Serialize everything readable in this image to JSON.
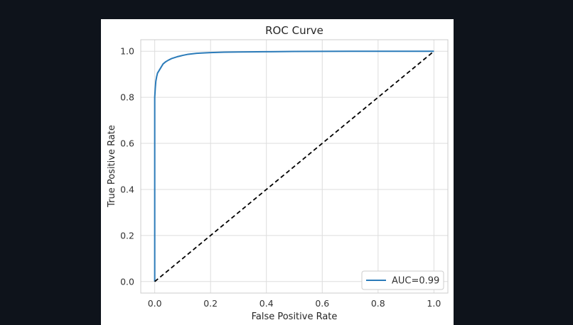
{
  "chart_data": {
    "type": "line",
    "title": "ROC Curve",
    "xlabel": "False Positive Rate",
    "ylabel": "True Positive Rate",
    "xlim": [
      -0.05,
      1.05
    ],
    "ylim": [
      -0.05,
      1.05
    ],
    "x_ticks": [
      "0.0",
      "0.2",
      "0.4",
      "0.6",
      "0.8",
      "1.0"
    ],
    "y_ticks": [
      "0.0",
      "0.2",
      "0.4",
      "0.6",
      "0.8",
      "1.0"
    ],
    "grid": true,
    "legend_position": "lower-right",
    "series": [
      {
        "name": "AUC=0.99",
        "color": "#2b7bb9",
        "style": "solid",
        "x": [
          0.0,
          0.0,
          0.002,
          0.004,
          0.007,
          0.01,
          0.015,
          0.02,
          0.025,
          0.03,
          0.04,
          0.05,
          0.06,
          0.07,
          0.08,
          0.1,
          0.12,
          0.15,
          0.18,
          0.2,
          0.25,
          0.3,
          0.4,
          0.5,
          0.7,
          1.0
        ],
        "y": [
          0.0,
          0.8,
          0.84,
          0.87,
          0.89,
          0.905,
          0.915,
          0.925,
          0.935,
          0.945,
          0.955,
          0.962,
          0.968,
          0.972,
          0.976,
          0.982,
          0.987,
          0.991,
          0.993,
          0.994,
          0.996,
          0.997,
          0.998,
          0.999,
          1.0,
          1.0
        ]
      },
      {
        "name": "",
        "color": "#000000",
        "style": "dashed",
        "x": [
          0.0,
          1.0
        ],
        "y": [
          0.0,
          1.0
        ]
      }
    ]
  }
}
